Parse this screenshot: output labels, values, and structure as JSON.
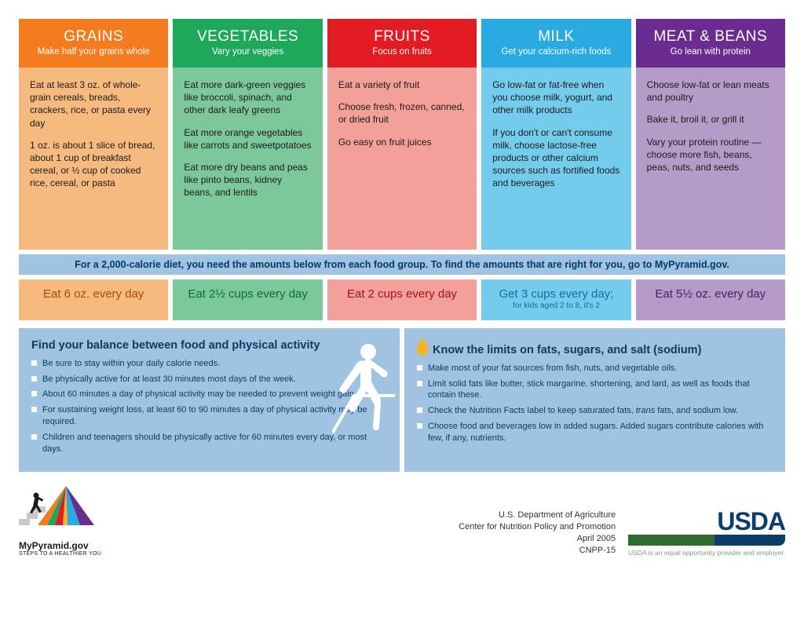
{
  "columns": [
    {
      "key": "grains",
      "title": "GRAINS",
      "subtitle": "Make half your grains whole",
      "header_bg": "#f47b20",
      "body_bg": "#f7ba7e",
      "amount_bg": "#f7ba7e",
      "amount_color": "#a84a0e",
      "amount": "Eat 6 oz. every day",
      "amount_sub": "",
      "body": [
        "Eat at least 3 oz. of whole-grain cereals, breads, crackers, rice, or pasta every day",
        "1 oz. is about 1 slice of bread, about 1 cup of breakfast cereal, or ½ cup of cooked rice, cereal, or pasta"
      ]
    },
    {
      "key": "vegetables",
      "title": "VEGETABLES",
      "subtitle": "Vary your veggies",
      "header_bg": "#1ea85a",
      "body_bg": "#7cc89b",
      "amount_bg": "#7cc89b",
      "amount_color": "#0d6b39",
      "amount": "Eat 2½ cups every day",
      "amount_sub": "",
      "body": [
        "Eat more dark-green veggies like broccoli, spinach, and other dark leafy greens",
        "Eat more orange vegetables like carrots and sweetpotatoes",
        "Eat more dry beans and peas like pinto beans, kidney beans, and lentils"
      ]
    },
    {
      "key": "fruits",
      "title": "FRUITS",
      "subtitle": "Focus on fruits",
      "header_bg": "#e31b23",
      "body_bg": "#f3a09a",
      "amount_bg": "#f3a09a",
      "amount_color": "#a11216",
      "amount": "Eat 2 cups every day",
      "amount_sub": "",
      "body": [
        "Eat a variety of fruit",
        "Choose fresh, frozen, canned, or dried fruit",
        "Go easy on fruit juices"
      ]
    },
    {
      "key": "milk",
      "title": "MILK",
      "subtitle": "Get your calcium-rich foods",
      "header_bg": "#29abe2",
      "body_bg": "#74ccec",
      "amount_bg": "#74ccec",
      "amount_color": "#0d6fa0",
      "amount": "Get 3 cups every day;",
      "amount_sub": "for kids aged 2 to 8, it's 2",
      "body": [
        "Go low-fat or fat-free when you choose milk, yogurt, and other milk products",
        "If you don't or can't consume milk, choose lactose-free products or other calcium sources such as fortified foods and beverages"
      ]
    },
    {
      "key": "meat",
      "title": "MEAT & BEANS",
      "subtitle": "Go lean with protein",
      "header_bg": "#6a2c91",
      "body_bg": "#b49bc8",
      "amount_bg": "#b49bc8",
      "amount_color": "#4a1c68",
      "amount": "Eat 5½ oz. every day",
      "amount_sub": "",
      "body": [
        "Choose low-fat or lean meats and poultry",
        "Bake it, broil it, or grill it",
        "Vary your protein routine — choose more fish, beans, peas, nuts, and seeds"
      ]
    }
  ],
  "calorie_bar": "For a 2,000-calorie diet, you need the amounts below from each food group. To find the amounts that are right for you, go to MyPyramid.gov.",
  "balance_panel": {
    "title": "Find your balance between food and physical activity",
    "items": [
      "Be sure to stay within your daily calorie needs.",
      "Be physically active for at least 30 minutes most days of the week.",
      "About 60 minutes a day of physical activity may be needed to prevent weight gain.",
      "For sustaining weight loss, at least 60 to 90 minutes a day of physical activity may be required.",
      "Children and teenagers should be physically active for 60 minutes every day, or most days."
    ]
  },
  "limits_panel": {
    "title": "Know the limits on fats, sugars, and salt (sodium)",
    "items": [
      "Make most of your fat sources from fish, nuts, and vegetable oils.",
      "Limit solid fats like butter, stick margarine, shortening, and lard, as well as foods that contain these.",
      "Check the Nutrition Facts label to keep saturated fats, trans fats, and sodium low.",
      "Choose food and beverages low in added sugars. Added sugars contribute calories with few, if any, nutrients."
    ]
  },
  "footer": {
    "mypyramid_label": "MyPyramid.gov",
    "mypyramid_sub": "STEPS TO A HEALTHIER YOU",
    "org1": "U.S. Department of Agriculture",
    "org2": "Center for Nutrition Policy and Promotion",
    "date": "April 2005",
    "code": "CNPP-15",
    "usda": "USDA",
    "disclaimer": "USDA is an equal opportunity provider and employer."
  },
  "colors": {
    "panel_bg": "#9fc3e0",
    "panel_text": "#0d3a5f",
    "calorie_bg": "#9fc3e0",
    "calorie_text": "#003a6b"
  }
}
